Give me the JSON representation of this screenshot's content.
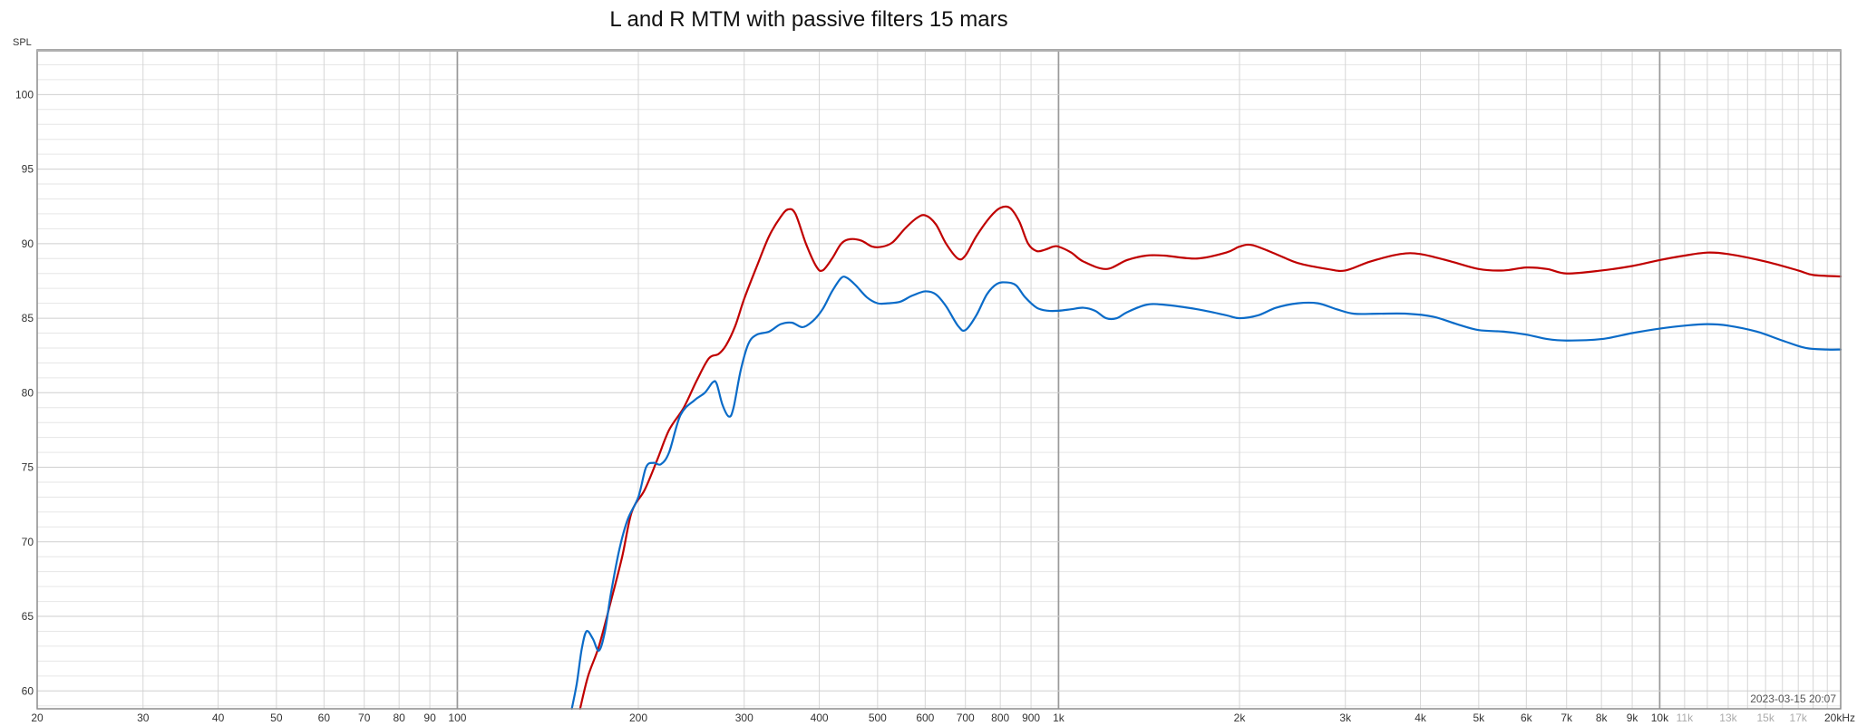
{
  "chart_data": {
    "type": "line",
    "title": "L and R MTM with passive filters 15 mars",
    "ylabel": "SPL",
    "xlabel": "",
    "timestamp": "2023-03-15 20:07",
    "xscale": "log",
    "xlim": [
      20,
      20000
    ],
    "ylim": [
      58.8,
      103
    ],
    "grid": true,
    "y_ticks": [
      100,
      95,
      90,
      85,
      80,
      75,
      70,
      65,
      60
    ],
    "x_ticks_major": [
      {
        "v": 20,
        "label": "20"
      },
      {
        "v": 30,
        "label": "30"
      },
      {
        "v": 40,
        "label": "40"
      },
      {
        "v": 50,
        "label": "50"
      },
      {
        "v": 60,
        "label": "60"
      },
      {
        "v": 70,
        "label": "70"
      },
      {
        "v": 80,
        "label": "80"
      },
      {
        "v": 90,
        "label": "90"
      },
      {
        "v": 100,
        "label": "100"
      },
      {
        "v": 200,
        "label": "200"
      },
      {
        "v": 300,
        "label": "300"
      },
      {
        "v": 400,
        "label": "400"
      },
      {
        "v": 500,
        "label": "500"
      },
      {
        "v": 600,
        "label": "600"
      },
      {
        "v": 700,
        "label": "700"
      },
      {
        "v": 800,
        "label": "800"
      },
      {
        "v": 900,
        "label": "900"
      },
      {
        "v": 1000,
        "label": "1k"
      },
      {
        "v": 2000,
        "label": "2k"
      },
      {
        "v": 3000,
        "label": "3k"
      },
      {
        "v": 4000,
        "label": "4k"
      },
      {
        "v": 5000,
        "label": "5k"
      },
      {
        "v": 6000,
        "label": "6k"
      },
      {
        "v": 7000,
        "label": "7k"
      },
      {
        "v": 8000,
        "label": "8k"
      },
      {
        "v": 9000,
        "label": "9k"
      },
      {
        "v": 10000,
        "label": "10k"
      },
      {
        "v": 20000,
        "label": "20kHz"
      }
    ],
    "x_ticks_minor": [
      {
        "v": 11000,
        "label": "11k"
      },
      {
        "v": 13000,
        "label": "13k"
      },
      {
        "v": 15000,
        "label": "15k"
      },
      {
        "v": 17000,
        "label": "17k"
      }
    ],
    "series": [
      {
        "color": "#c00000",
        "points": [
          [
            160,
            58.8
          ],
          [
            165,
            61
          ],
          [
            172,
            63
          ],
          [
            180,
            66
          ],
          [
            188,
            69
          ],
          [
            195,
            72
          ],
          [
            205,
            73.5
          ],
          [
            215,
            75.5
          ],
          [
            225,
            77.5
          ],
          [
            238,
            79
          ],
          [
            250,
            80.8
          ],
          [
            262,
            82.3
          ],
          [
            272,
            82.6
          ],
          [
            280,
            83.2
          ],
          [
            290,
            84.5
          ],
          [
            300,
            86.3
          ],
          [
            315,
            88.5
          ],
          [
            330,
            90.5
          ],
          [
            345,
            91.8
          ],
          [
            355,
            92.3
          ],
          [
            365,
            92
          ],
          [
            380,
            90
          ],
          [
            395,
            88.5
          ],
          [
            405,
            88.2
          ],
          [
            420,
            89
          ],
          [
            435,
            90
          ],
          [
            450,
            90.3
          ],
          [
            470,
            90.2
          ],
          [
            490,
            89.8
          ],
          [
            510,
            89.8
          ],
          [
            530,
            90.1
          ],
          [
            555,
            91
          ],
          [
            580,
            91.7
          ],
          [
            600,
            91.9
          ],
          [
            625,
            91.3
          ],
          [
            650,
            90
          ],
          [
            680,
            89
          ],
          [
            700,
            89.2
          ],
          [
            730,
            90.5
          ],
          [
            770,
            91.8
          ],
          [
            800,
            92.4
          ],
          [
            830,
            92.4
          ],
          [
            860,
            91.5
          ],
          [
            890,
            90
          ],
          [
            920,
            89.5
          ],
          [
            950,
            89.6
          ],
          [
            980,
            89.8
          ],
          [
            1000,
            89.8
          ],
          [
            1050,
            89.4
          ],
          [
            1100,
            88.8
          ],
          [
            1200,
            88.3
          ],
          [
            1300,
            88.9
          ],
          [
            1400,
            89.2
          ],
          [
            1500,
            89.2
          ],
          [
            1700,
            89
          ],
          [
            1900,
            89.4
          ],
          [
            2000,
            89.8
          ],
          [
            2100,
            89.9
          ],
          [
            2300,
            89.3
          ],
          [
            2500,
            88.7
          ],
          [
            2800,
            88.3
          ],
          [
            3000,
            88.2
          ],
          [
            3300,
            88.8
          ],
          [
            3700,
            89.3
          ],
          [
            4000,
            89.3
          ],
          [
            4500,
            88.8
          ],
          [
            5000,
            88.3
          ],
          [
            5500,
            88.2
          ],
          [
            6000,
            88.4
          ],
          [
            6500,
            88.3
          ],
          [
            7000,
            88
          ],
          [
            8000,
            88.2
          ],
          [
            9000,
            88.5
          ],
          [
            10000,
            88.9
          ],
          [
            11000,
            89.2
          ],
          [
            12000,
            89.4
          ],
          [
            13000,
            89.3
          ],
          [
            15000,
            88.8
          ],
          [
            17000,
            88.2
          ],
          [
            18000,
            87.9
          ],
          [
            20000,
            87.8
          ]
        ]
      },
      {
        "color": "#0a6bc8",
        "points": [
          [
            155,
            58.8
          ],
          [
            158,
            60.5
          ],
          [
            161,
            62.8
          ],
          [
            164,
            64
          ],
          [
            168,
            63.5
          ],
          [
            172,
            62.7
          ],
          [
            176,
            64
          ],
          [
            180,
            66.5
          ],
          [
            186,
            69.5
          ],
          [
            192,
            71.5
          ],
          [
            200,
            73
          ],
          [
            206,
            75
          ],
          [
            212,
            75.3
          ],
          [
            218,
            75.2
          ],
          [
            225,
            76
          ],
          [
            235,
            78.5
          ],
          [
            248,
            79.5
          ],
          [
            258,
            80
          ],
          [
            266,
            80.7
          ],
          [
            270,
            80.6
          ],
          [
            276,
            79.2
          ],
          [
            283,
            78.4
          ],
          [
            288,
            79
          ],
          [
            296,
            81.5
          ],
          [
            305,
            83.3
          ],
          [
            315,
            83.9
          ],
          [
            330,
            84.1
          ],
          [
            345,
            84.6
          ],
          [
            360,
            84.7
          ],
          [
            375,
            84.4
          ],
          [
            390,
            84.8
          ],
          [
            405,
            85.6
          ],
          [
            420,
            86.8
          ],
          [
            435,
            87.7
          ],
          [
            445,
            87.7
          ],
          [
            460,
            87.2
          ],
          [
            480,
            86.4
          ],
          [
            500,
            86
          ],
          [
            520,
            86
          ],
          [
            545,
            86.1
          ],
          [
            570,
            86.5
          ],
          [
            600,
            86.8
          ],
          [
            625,
            86.6
          ],
          [
            650,
            85.8
          ],
          [
            680,
            84.5
          ],
          [
            700,
            84.2
          ],
          [
            730,
            85.2
          ],
          [
            760,
            86.6
          ],
          [
            790,
            87.3
          ],
          [
            820,
            87.4
          ],
          [
            850,
            87.2
          ],
          [
            880,
            86.4
          ],
          [
            920,
            85.7
          ],
          [
            960,
            85.5
          ],
          [
            1000,
            85.5
          ],
          [
            1050,
            85.6
          ],
          [
            1100,
            85.7
          ],
          [
            1150,
            85.5
          ],
          [
            1200,
            85
          ],
          [
            1250,
            85
          ],
          [
            1300,
            85.4
          ],
          [
            1400,
            85.9
          ],
          [
            1500,
            85.9
          ],
          [
            1700,
            85.6
          ],
          [
            1900,
            85.2
          ],
          [
            2000,
            85
          ],
          [
            2150,
            85.2
          ],
          [
            2300,
            85.7
          ],
          [
            2500,
            86
          ],
          [
            2700,
            86
          ],
          [
            2900,
            85.6
          ],
          [
            3100,
            85.3
          ],
          [
            3400,
            85.3
          ],
          [
            3800,
            85.3
          ],
          [
            4200,
            85.1
          ],
          [
            4600,
            84.6
          ],
          [
            5000,
            84.2
          ],
          [
            5500,
            84.1
          ],
          [
            6000,
            83.9
          ],
          [
            6500,
            83.6
          ],
          [
            7000,
            83.5
          ],
          [
            8000,
            83.6
          ],
          [
            9000,
            84
          ],
          [
            10000,
            84.3
          ],
          [
            11000,
            84.5
          ],
          [
            12000,
            84.6
          ],
          [
            13000,
            84.5
          ],
          [
            14500,
            84.1
          ],
          [
            16000,
            83.5
          ],
          [
            17500,
            83
          ],
          [
            19000,
            82.9
          ],
          [
            20000,
            82.9
          ]
        ]
      }
    ]
  }
}
